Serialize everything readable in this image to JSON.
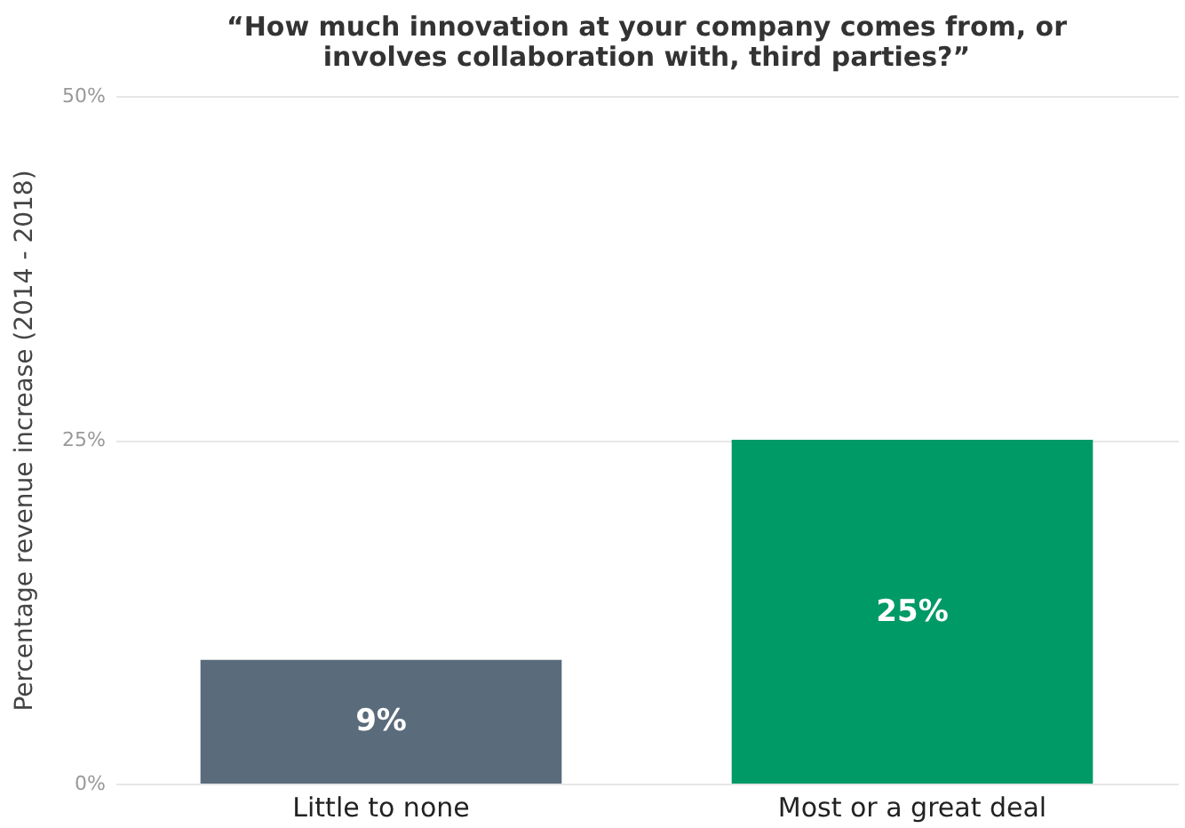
{
  "chart_data": {
    "type": "bar",
    "title": "“How much innovation at your company comes from, or involves collaboration with, third parties?”",
    "ylabel": "Percentage revenue increase (2014 - 2018)",
    "categories": [
      "Little to none",
      "Most or a great deal"
    ],
    "values": [
      9,
      25
    ],
    "colors": [
      "#5a6b7b",
      "#009a66"
    ],
    "value_labels": [
      "9%",
      "25%"
    ],
    "ylim": [
      0,
      50
    ],
    "yticks": [
      {
        "value": 0,
        "label": "0%"
      },
      {
        "value": 25,
        "label": "25%"
      },
      {
        "value": 50,
        "label": "50%"
      }
    ],
    "grid": "y"
  }
}
